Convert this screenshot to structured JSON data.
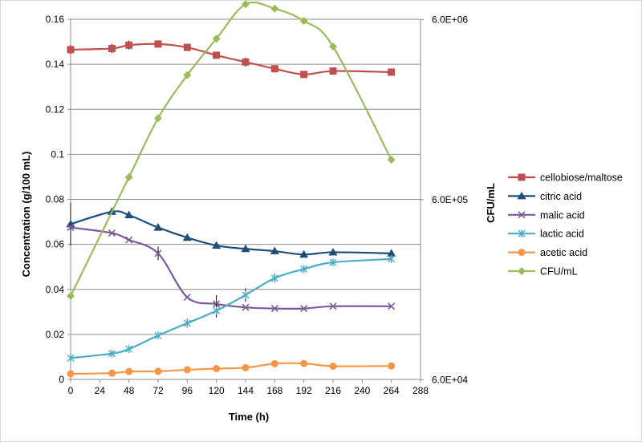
{
  "chart_data": {
    "type": "line",
    "xlabel": "Time (h)",
    "ylabel": "Concentration (g/100 mL)",
    "y2label": "CFU/mL",
    "xlim": [
      0,
      288
    ],
    "ylim": [
      0,
      0.16
    ],
    "y2lim_log10": [
      4.78,
      6.78
    ],
    "y2_scale": "log",
    "grid": "horizontal",
    "legend_position": "right",
    "x_ticks": [
      0,
      24,
      48,
      72,
      96,
      120,
      144,
      168,
      192,
      216,
      240,
      264,
      288
    ],
    "x_tick_labels": [
      "0",
      "24",
      "48",
      "72",
      "96",
      "120",
      "144",
      "168",
      "192",
      "216",
      "240",
      "264",
      "288"
    ],
    "y_ticks": [
      0,
      0.02,
      0.04,
      0.06,
      0.08,
      0.1,
      0.12,
      0.14,
      0.16
    ],
    "y_tick_labels": [
      "0",
      "0.02",
      "0.04",
      "0.06",
      "0.08",
      "0.1",
      "0.12",
      "0.14",
      "0.16"
    ],
    "y2_ticks": [
      60000,
      600000,
      6000000
    ],
    "y2_tick_labels": [
      "6.0E+04",
      "6.0E+05",
      "6.0E+06"
    ],
    "series": [
      {
        "name": "cellobiose/maltose",
        "axis": "left",
        "color": "#c0504d",
        "marker": "square",
        "x": [
          0,
          34,
          48,
          72,
          96,
          120,
          144,
          168,
          192,
          216,
          264
        ],
        "y": [
          0.1465,
          0.147,
          0.1485,
          0.149,
          0.1475,
          0.144,
          0.141,
          0.138,
          0.1355,
          0.137,
          0.1365
        ],
        "err": [
          0.002,
          0.002,
          0.002,
          0,
          0,
          0,
          0.002,
          0,
          0,
          0,
          0
        ]
      },
      {
        "name": "citric acid",
        "axis": "left",
        "color": "#1f4e79",
        "marker": "triangle",
        "x": [
          0,
          34,
          48,
          72,
          96,
          120,
          144,
          168,
          192,
          216,
          264
        ],
        "y": [
          0.069,
          0.0745,
          0.073,
          0.0675,
          0.063,
          0.0595,
          0.058,
          0.057,
          0.0555,
          0.0565,
          0.056
        ],
        "err": [
          0.0095,
          0,
          0,
          0,
          0,
          0,
          0,
          0,
          0,
          0,
          0
        ]
      },
      {
        "name": "malic acid",
        "axis": "left",
        "color": "#7e5a9b",
        "marker": "x",
        "x": [
          0,
          34,
          48,
          72,
          96,
          120,
          144,
          168,
          192,
          216,
          264
        ],
        "y": [
          0.0675,
          0.065,
          0.062,
          0.056,
          0.0365,
          0.0335,
          0.032,
          0.0315,
          0.0315,
          0.0325,
          0.0325
        ],
        "err": [
          0,
          0,
          0,
          0.003,
          0,
          0.004,
          0,
          0,
          0,
          0,
          0
        ]
      },
      {
        "name": "lactic acid",
        "axis": "left",
        "color": "#4bacc6",
        "marker": "star",
        "x": [
          0,
          34,
          48,
          72,
          96,
          120,
          144,
          168,
          192,
          216,
          264
        ],
        "y": [
          0.0095,
          0.0115,
          0.0135,
          0.0195,
          0.025,
          0.0305,
          0.0375,
          0.045,
          0.049,
          0.052,
          0.0535
        ],
        "err": [
          0,
          0,
          0,
          0,
          0.002,
          0.003,
          0.003,
          0.002,
          0,
          0,
          0
        ]
      },
      {
        "name": "acetic acid",
        "axis": "left",
        "color": "#f79646",
        "marker": "circle",
        "x": [
          0,
          34,
          48,
          72,
          96,
          120,
          144,
          168,
          192,
          216,
          264
        ],
        "y": [
          0.0025,
          0.0028,
          0.0035,
          0.0036,
          0.0043,
          0.0048,
          0.0052,
          0.007,
          0.0071,
          0.0059,
          0.006
        ],
        "err": [
          0,
          0,
          0,
          0,
          0,
          0,
          0,
          0.0015,
          0.0015,
          0,
          0
        ]
      },
      {
        "name": "CFU/mL",
        "axis": "right",
        "color": "#9bbb59",
        "marker": "diamond",
        "x": [
          0,
          48,
          72,
          96,
          120,
          144,
          168,
          192,
          216,
          264
        ],
        "y": [
          175000,
          800000,
          1700000,
          2950000,
          4700000,
          7300000,
          6900000,
          5900000,
          4250000,
          1000000
        ],
        "err": [
          0,
          0,
          0,
          0,
          0,
          0,
          0,
          0,
          0,
          0
        ]
      }
    ]
  }
}
